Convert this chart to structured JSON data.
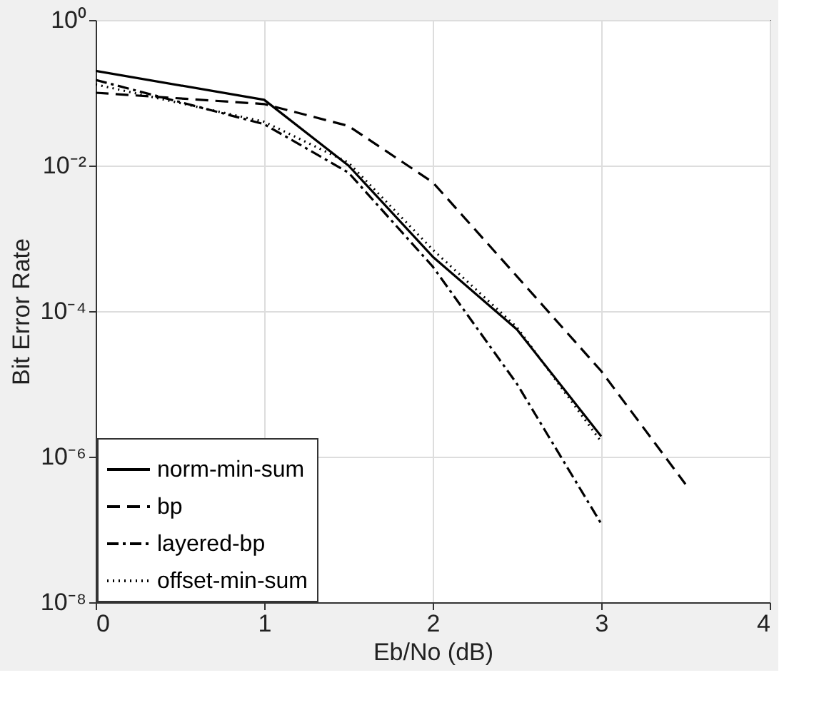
{
  "chart_data": {
    "type": "line",
    "xlabel": "Eb/No (dB)",
    "ylabel": "Bit Error Rate",
    "log": "y",
    "grid": true,
    "legend": "bottom left",
    "xlim": [
      0,
      4
    ],
    "xticks": [
      0,
      1,
      2,
      3,
      4
    ],
    "ylim": [
      1e-08,
      1
    ],
    "yticks": [
      {
        "value": 1e-08,
        "label": "10⁻⁸"
      },
      {
        "value": 1e-06,
        "label": "10⁻⁶"
      },
      {
        "value": 0.0001,
        "label": "10⁻⁴"
      },
      {
        "value": 0.01,
        "label": "10⁻²"
      },
      {
        "value": 1,
        "label": "10⁰"
      }
    ],
    "series": [
      {
        "name": "norm-min-sum",
        "color": "#000000",
        "line_style": "solid",
        "x": [
          0,
          1,
          1.5,
          2,
          2.5,
          3
        ],
        "values": [
          0.2,
          0.08,
          0.01,
          0.00056,
          5.6e-05,
          1.9e-06
        ]
      },
      {
        "name": "bp",
        "color": "#000000",
        "line_style": "dashed",
        "x": [
          0,
          1,
          1.5,
          2,
          2.5,
          3,
          3.5
        ],
        "values": [
          0.1,
          0.07,
          0.035,
          0.0059,
          0.0003,
          1.5e-05,
          4.2e-07
        ]
      },
      {
        "name": "layered-bp",
        "color": "#000000",
        "line_style": "dashdot",
        "x": [
          0,
          1,
          1.5,
          2,
          2.5,
          3
        ],
        "values": [
          0.15,
          0.037,
          0.008,
          0.00041,
          1e-05,
          1.2e-07
        ]
      },
      {
        "name": "offset-min-sum",
        "color": "#000000",
        "line_style": "dotted",
        "x": [
          0,
          1,
          1.5,
          2,
          2.5,
          3
        ],
        "values": [
          0.13,
          0.04,
          0.011,
          0.0007,
          6e-05,
          1.6e-06
        ]
      }
    ]
  }
}
